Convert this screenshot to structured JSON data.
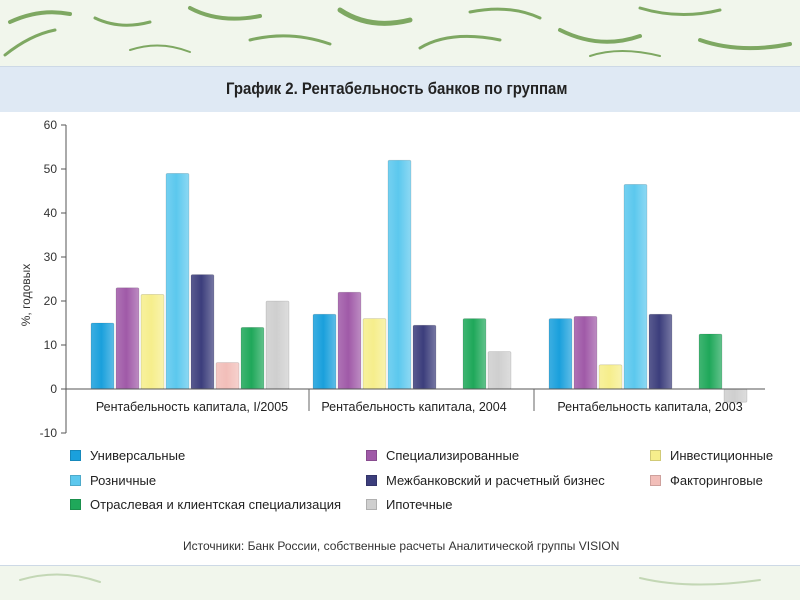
{
  "chart_data": {
    "type": "bar",
    "title": "График 2. Рентабельность банков по группам",
    "ylabel": "%, годовых",
    "xlabel": "",
    "ylim": [
      -10,
      60
    ],
    "yticks": [
      -10,
      0,
      10,
      20,
      30,
      40,
      50,
      60
    ],
    "grid": false,
    "legend_position": "bottom",
    "categories": [
      "Рентабельность капитала, I/2005",
      "Рентабельность капитала, 2004",
      "Рентабельность капитала, 2003"
    ],
    "series": [
      {
        "name": "Универсальные",
        "color": "#1aa0dc",
        "values": [
          15,
          17,
          16
        ]
      },
      {
        "name": "Специализированные",
        "color": "#a05aa8",
        "values": [
          23,
          22,
          16.5
        ]
      },
      {
        "name": "Инвестиционные",
        "color": "#f6ee8c",
        "values": [
          21.5,
          16,
          5.5
        ]
      },
      {
        "name": "Розничные",
        "color": "#5cc8ee",
        "values": [
          49,
          52,
          46.5
        ]
      },
      {
        "name": "Межбанковский и расчетный бизнес",
        "color": "#3c3e7c",
        "values": [
          26,
          14.5,
          17
        ]
      },
      {
        "name": "Факторинговые",
        "color": "#f2beb9",
        "values": [
          6,
          null,
          null
        ]
      },
      {
        "name": "Отраслевая и клиентская специализация",
        "color": "#1fa85a",
        "values": [
          14,
          16,
          12.5
        ]
      },
      {
        "name": "Ипотечные",
        "color": "#cfcfcf",
        "values": [
          20,
          8.5,
          -3
        ]
      }
    ],
    "source": "Источники: Банк России, собственные расчеты Аналитической группы VISION"
  }
}
